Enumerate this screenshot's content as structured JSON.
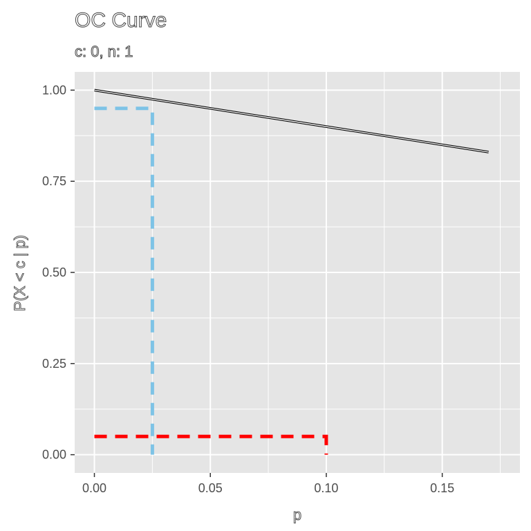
{
  "chart_data": {
    "type": "line",
    "title": "OC Curve",
    "subtitle": "c: 0, n: 1",
    "xlabel": "p",
    "ylabel": "P(X < c | p)",
    "xlim": [
      -0.0085,
      0.1835
    ],
    "ylim": [
      -0.05,
      1.05
    ],
    "x_ticks": [
      0.0,
      0.05,
      0.1,
      0.15
    ],
    "x_tick_labels": [
      "0.00",
      "0.05",
      "0.10",
      "0.15"
    ],
    "y_ticks": [
      0.0,
      0.25,
      0.5,
      0.75,
      1.0
    ],
    "y_tick_labels": [
      "0.00",
      "0.25",
      "0.50",
      "0.75",
      "1.00"
    ],
    "grid": true,
    "series": [
      {
        "x": [
          0.0,
          0.17
        ],
        "y": [
          1.0,
          0.83
        ]
      }
    ],
    "reference_lines": [
      {
        "color": "#7ec3e6",
        "points": [
          [
            0.0,
            0.95
          ],
          [
            0.025,
            0.95
          ],
          [
            0.025,
            0.0
          ]
        ]
      },
      {
        "color": "#ff0000",
        "points": [
          [
            0.0,
            0.05
          ],
          [
            0.1,
            0.05
          ],
          [
            0.1,
            0.0
          ]
        ]
      }
    ],
    "colors": {
      "panel": "#e5e5e5",
      "grid": "#ffffff",
      "curve": "#000000"
    }
  }
}
